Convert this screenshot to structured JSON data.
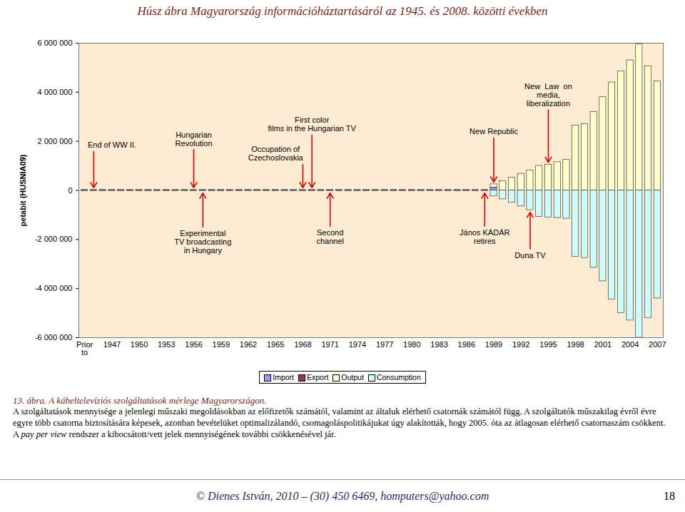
{
  "header": "Húsz ábra Magyarország információháztartásáról az 1945. és 2008. közötti években",
  "chart_data": {
    "type": "bar",
    "stacked": true,
    "y_label": "petabit (HUSNIA09)",
    "categories": [
      "Prior to",
      null,
      null,
      "1947",
      null,
      null,
      "1950",
      null,
      null,
      "1953",
      null,
      null,
      "1956",
      null,
      null,
      "1959",
      null,
      null,
      "1962",
      null,
      null,
      "1965",
      null,
      null,
      "1968",
      null,
      null,
      "1971",
      null,
      null,
      "1974",
      null,
      null,
      "1977",
      null,
      null,
      "1980",
      null,
      null,
      "1983",
      null,
      null,
      "1986",
      null,
      null,
      "1989",
      null,
      null,
      "1992",
      null,
      null,
      "1995",
      null,
      null,
      "1998",
      null,
      null,
      "2001",
      null,
      null,
      "2004",
      null,
      null,
      "2007"
    ],
    "series": [
      {
        "name": "Import",
        "color": "#9999ff",
        "values": [
          0,
          0,
          0,
          0,
          0,
          0,
          0,
          0,
          0,
          0,
          0,
          0,
          0,
          0,
          0,
          0,
          0,
          0,
          0,
          0,
          0,
          0,
          0,
          0,
          0,
          0,
          0,
          0,
          0,
          0,
          0,
          0,
          0,
          0,
          0,
          0,
          0,
          0,
          0,
          0,
          0,
          0,
          0,
          0,
          0,
          120000,
          0,
          0,
          0,
          0,
          0,
          0,
          0,
          0,
          0,
          0,
          0,
          0,
          0,
          0,
          0,
          0,
          0,
          0
        ]
      },
      {
        "name": "Export",
        "color": "#993366",
        "values": [
          0,
          0,
          0,
          0,
          0,
          0,
          0,
          0,
          0,
          0,
          0,
          0,
          0,
          0,
          0,
          0,
          0,
          0,
          0,
          0,
          0,
          0,
          0,
          0,
          0,
          0,
          0,
          0,
          0,
          0,
          0,
          0,
          0,
          0,
          0,
          0,
          0,
          0,
          0,
          0,
          0,
          0,
          0,
          0,
          0,
          0,
          0,
          0,
          0,
          0,
          0,
          0,
          0,
          0,
          0,
          0,
          0,
          0,
          0,
          0,
          0,
          0,
          0,
          0
        ]
      },
      {
        "name": "Output",
        "color": "#ffffcc",
        "values": [
          20000,
          20000,
          20000,
          20000,
          20000,
          20000,
          20000,
          20000,
          20000,
          20000,
          20000,
          20000,
          20000,
          20000,
          20000,
          20000,
          20000,
          20000,
          20000,
          20000,
          20000,
          20000,
          20000,
          20000,
          20000,
          20000,
          20000,
          20000,
          20000,
          20000,
          20000,
          20000,
          20000,
          20000,
          20000,
          20000,
          20000,
          20000,
          20000,
          20000,
          20000,
          20000,
          20000,
          20000,
          20000,
          130000,
          380000,
          520000,
          680000,
          820000,
          1000000,
          1050000,
          1150000,
          1250000,
          2650000,
          2700000,
          3200000,
          3800000,
          4400000,
          4850000,
          5300000,
          5950000,
          5050000,
          4450000
        ]
      },
      {
        "name": "Consumption",
        "color": "#ccffff",
        "values": [
          -20000,
          -20000,
          -20000,
          -20000,
          -20000,
          -20000,
          -20000,
          -20000,
          -20000,
          -20000,
          -20000,
          -20000,
          -20000,
          -20000,
          -20000,
          -20000,
          -20000,
          -20000,
          -20000,
          -20000,
          -20000,
          -20000,
          -20000,
          -20000,
          -20000,
          -20000,
          -20000,
          -20000,
          -20000,
          -20000,
          -20000,
          -20000,
          -20000,
          -20000,
          -20000,
          -20000,
          -20000,
          -20000,
          -20000,
          -20000,
          -20000,
          -20000,
          -20000,
          -20000,
          -20000,
          -240000,
          -360000,
          -500000,
          -650000,
          -800000,
          -1080000,
          -1100000,
          -1120000,
          -1150000,
          -2700000,
          -2750000,
          -3150000,
          -3700000,
          -4450000,
          -5000000,
          -5300000,
          -6000000,
          -5200000,
          -4400000
        ]
      }
    ],
    "ylim": [
      -6000000,
      6000000
    ],
    "yticks": [
      {
        "value": -6000000,
        "label": "-6 000 000"
      },
      {
        "value": -4000000,
        "label": "-4 000 000"
      },
      {
        "value": -2000000,
        "label": "-2 000 000"
      },
      0,
      {
        "value": 2000000,
        "label": "2 000 000"
      },
      {
        "value": 4000000,
        "label": "4 000 000"
      },
      {
        "value": 6000000,
        "label": "6 000 000"
      }
    ],
    "grid": false,
    "legend": "bottom",
    "annotations": [
      {
        "label": "End of WW II.",
        "x": 1,
        "text_x": 3,
        "y": 1850000
      },
      {
        "label": "Hungarian\nRevolution",
        "x": 12,
        "y": 2100000
      },
      {
        "label": "Experimental\nTV broadcasting\nin Hungary",
        "x": 13,
        "y": -2100000
      },
      {
        "label": "Occupation of\nCzechoslovakia",
        "x": 24,
        "text_x": 21,
        "y": 1500000
      },
      {
        "label": "First color\nfilms in the Hungarian TV",
        "x": 25,
        "y": 2700000
      },
      {
        "label": "Second\nchannel",
        "x": 27,
        "y": -1900000
      },
      {
        "label": "János KÁDÁR\nretires",
        "x": 44,
        "y": -1900000
      },
      {
        "label": "New Republic",
        "x": 45,
        "y": 2400000
      },
      {
        "label": "Duna TV",
        "x": 49,
        "y": -2650000
      },
      {
        "label": "New  Law  on\nmedia,\nliberalization",
        "x": 51,
        "y": 3900000
      }
    ]
  },
  "caption": {
    "title": "13. ábra. A kábeltelevíziós szolgáltatások mérlege Magyarországon.",
    "parts": [
      "A szolgáltatások mennyisége a jelenlegi műszaki megoldásokban az előfizetők számától, valamint az általuk elérhető csatornák számától függ. A szolgáltatók műszakilag évről évre egyre több csatorna biztosítására képesek, azonban bevételüket optimalizálandó, csomagoláspolitikájukat úgy alakították, hogy 2005. óta az átlagosan elérhető csatornaszám csökkent. A ",
      "pay per view",
      " rendszer a kibocsátott/vett jelek mennyiségének további csökkenésével jár."
    ]
  },
  "footer": {
    "text": "© Dienes István, 2010 – (30) 450 6469, homputers@yahoo.com",
    "page": "18"
  }
}
